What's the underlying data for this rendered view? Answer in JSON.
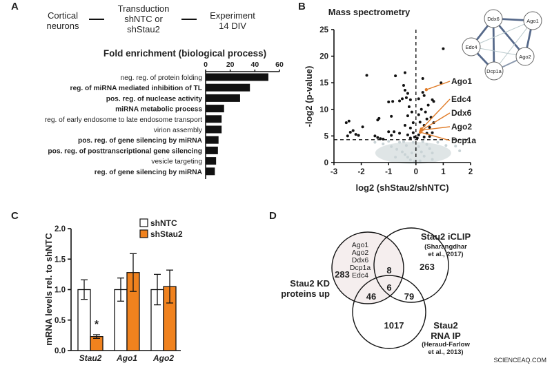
{
  "panels": {
    "a": "A",
    "b": "B",
    "c": "C",
    "d": "D"
  },
  "workflow": {
    "step1": [
      "Cortical",
      "neurons"
    ],
    "step2": [
      "Transduction",
      "shNTC or",
      "shStau2"
    ],
    "step3": [
      "Experiment",
      "14 DIV"
    ]
  },
  "watermark": "SCIENCEAQ.COM",
  "chart_data": [
    {
      "id": "A",
      "type": "bar",
      "orientation": "horizontal",
      "title": "Fold enrichment (biological process)",
      "xlim": [
        0,
        60
      ],
      "xticks": [
        "0",
        "20",
        "40",
        "60"
      ],
      "categories": [
        {
          "label": "neg. reg. of protein folding",
          "bold": false
        },
        {
          "label": "reg. of miRNA mediated inhibition of TL",
          "bold": true
        },
        {
          "label": "pos. reg. of nuclease activity",
          "bold": true
        },
        {
          "label": "miRNA metabolic process",
          "bold": true
        },
        {
          "label": "reg. of early endosome to late endosome transport",
          "bold": false
        },
        {
          "label": "virion assembly",
          "bold": false
        },
        {
          "label": "pos. reg. of gene silencing by miRNA",
          "bold": true
        },
        {
          "label": "pos. reg. of posttranscriptional gene silencing",
          "bold": true
        },
        {
          "label": "vesicle targeting",
          "bold": false
        },
        {
          "label": "reg. of gene silencing by miRNA",
          "bold": true
        }
      ],
      "values": [
        51,
        36,
        28,
        15,
        13,
        13,
        10.5,
        10,
        8.5,
        7.5
      ],
      "bar_color": "#111111"
    },
    {
      "id": "B",
      "type": "scatter",
      "title": "Mass spectrometry",
      "xlabel": "log2 (shStau2/shNTC)",
      "ylabel": "-log2 (p-value)",
      "xlim": [
        -3,
        2
      ],
      "ylim": [
        0,
        25
      ],
      "xticks": [
        "-3",
        "-2",
        "-1",
        "0",
        "1",
        "2"
      ],
      "yticks": [
        "0",
        "5",
        "10",
        "15",
        "20",
        "25"
      ],
      "threshold_y": 4.3,
      "threshold_x": 0,
      "significant_color": "#111111",
      "nonsignificant_color": "#c9d3d6",
      "highlight_color": "#e07b27",
      "significant_points": [
        [
          1.0,
          21.4
        ],
        [
          0.92,
          15
        ],
        [
          0.25,
          15.8
        ],
        [
          -0.4,
          16.9
        ],
        [
          -0.75,
          16.3
        ],
        [
          -1.8,
          16.4
        ],
        [
          -0.45,
          14.5
        ],
        [
          -0.4,
          13.6
        ],
        [
          -0.3,
          13
        ],
        [
          -0.35,
          12.2
        ],
        [
          -0.2,
          11.8
        ],
        [
          -0.5,
          12
        ],
        [
          -0.6,
          11.6
        ],
        [
          -1.0,
          11.4
        ],
        [
          -0.85,
          11.5
        ],
        [
          -0.25,
          10.5
        ],
        [
          -0.15,
          9.5
        ],
        [
          -0.3,
          8.8
        ],
        [
          -0.9,
          8.7
        ],
        [
          -1.35,
          8.3
        ],
        [
          -1.4,
          8
        ],
        [
          -2.45,
          7.8
        ],
        [
          -2.55,
          7.5
        ],
        [
          -1.95,
          6.7
        ],
        [
          -2.3,
          6
        ],
        [
          -2.4,
          5.7
        ],
        [
          -2.2,
          5.3
        ],
        [
          -2.1,
          5.1
        ],
        [
          -2.5,
          5
        ],
        [
          -1.5,
          5
        ],
        [
          -1.4,
          4.7
        ],
        [
          -1.3,
          4.5
        ],
        [
          -1.2,
          4.4
        ],
        [
          -1.0,
          5.8
        ],
        [
          -0.8,
          5.8
        ],
        [
          -0.9,
          5.1
        ],
        [
          -0.6,
          5.5
        ],
        [
          -0.4,
          7
        ],
        [
          -0.2,
          6.5
        ],
        [
          -0.1,
          7.5
        ],
        [
          -0.3,
          5.2
        ],
        [
          -0.1,
          5.6
        ],
        [
          0.1,
          12
        ],
        [
          0.25,
          13.2
        ],
        [
          0.3,
          12.6
        ],
        [
          0.6,
          11.8
        ],
        [
          0.65,
          11.5
        ],
        [
          0.45,
          10.8
        ],
        [
          0.2,
          10
        ],
        [
          0.35,
          9.5
        ],
        [
          0.1,
          9
        ],
        [
          0.4,
          8.2
        ],
        [
          0.55,
          8.5
        ],
        [
          0.15,
          7.6
        ],
        [
          0.3,
          7
        ],
        [
          0.65,
          7.5
        ],
        [
          0.5,
          6.6
        ],
        [
          0.2,
          6.2
        ],
        [
          0.4,
          5.5
        ],
        [
          0.1,
          5.2
        ],
        [
          0.6,
          5.6
        ],
        [
          0.3,
          4.8
        ],
        [
          0.05,
          4.6
        ],
        [
          -0.05,
          4.8
        ],
        [
          0.5,
          4.9
        ],
        [
          -0.2,
          4.6
        ]
      ],
      "nonsignificant_points": [
        [
          -1.5,
          3.8
        ],
        [
          -1.2,
          3.5
        ],
        [
          -0.9,
          3
        ],
        [
          -0.7,
          2.5
        ],
        [
          -0.5,
          2
        ],
        [
          -0.4,
          1.5
        ],
        [
          -0.3,
          1
        ],
        [
          -0.2,
          0.5
        ],
        [
          -0.1,
          3.8
        ],
        [
          0.1,
          3
        ],
        [
          0.2,
          2
        ],
        [
          0.3,
          1.2
        ],
        [
          0.4,
          3.4
        ],
        [
          0.5,
          2.6
        ],
        [
          0.6,
          1.8
        ],
        [
          0.15,
          0.3
        ],
        [
          -0.05,
          0.2
        ],
        [
          -0.6,
          3.8
        ],
        [
          -1.0,
          4
        ],
        [
          0.8,
          3.8
        ],
        [
          1.1,
          3.2
        ],
        [
          1.6,
          2.2
        ],
        [
          1.45,
          3.1
        ],
        [
          0.6,
          0.6
        ],
        [
          -0.75,
          1.0
        ],
        [
          -0.35,
          3.2
        ],
        [
          0.0,
          2.5
        ],
        [
          -0.15,
          1.8
        ],
        [
          0.25,
          3.9
        ],
        [
          -0.45,
          3.9
        ]
      ],
      "labeled_points": [
        {
          "label": "Ago1",
          "x": 0.38,
          "y": 13.7
        },
        {
          "label": "Edc4",
          "x": 0.2,
          "y": 6.3
        },
        {
          "label": "Ddx6",
          "x": 0.18,
          "y": 6.0
        },
        {
          "label": "Ago2",
          "x": 0.22,
          "y": 6.1
        },
        {
          "label": "Dcp1a",
          "x": 0.16,
          "y": 5.7
        }
      ],
      "network": {
        "nodes": [
          "Ddx6",
          "Ago1",
          "Edc4",
          "Ago2",
          "Dcp1a"
        ],
        "edges": [
          [
            "Ddx6",
            "Ago1",
            3
          ],
          [
            "Ddx6",
            "Edc4",
            3
          ],
          [
            "Ddx6",
            "Ago2",
            3
          ],
          [
            "Ddx6",
            "Dcp1a",
            3
          ],
          [
            "Edc4",
            "Dcp1a",
            3
          ],
          [
            "Ago1",
            "Ago2",
            3
          ],
          [
            "Ago1",
            "Edc4",
            1
          ],
          [
            "Ago1",
            "Dcp1a",
            1
          ],
          [
            "Edc4",
            "Ago2",
            1
          ],
          [
            "Ago2",
            "Dcp1a",
            2
          ]
        ]
      }
    },
    {
      "id": "C",
      "type": "bar",
      "ylabel": "mRNA levels rel. to shNTC",
      "ylim": [
        0,
        2.0
      ],
      "yticks": [
        "0.0",
        "0.5",
        "1.0",
        "1.5",
        "2.0"
      ],
      "categories": [
        "Stau2",
        "Ago1",
        "Ago2"
      ],
      "series": [
        {
          "name": "shNTC",
          "color": "#ffffff",
          "values": [
            1.0,
            1.0,
            1.0
          ],
          "errors": [
            0.16,
            0.19,
            0.25
          ]
        },
        {
          "name": "shStau2",
          "color": "#f0821e",
          "values": [
            0.23,
            1.28,
            1.05
          ],
          "errors": [
            0.03,
            0.31,
            0.27
          ]
        }
      ],
      "annotations": [
        {
          "category": "Stau2",
          "series": "shStau2",
          "text": "*"
        }
      ],
      "legend": "top-right"
    },
    {
      "id": "D",
      "type": "venn",
      "sets": [
        {
          "label": [
            "Stau2 KD",
            "proteins up"
          ],
          "only": "283",
          "fill": "#f5eeee"
        },
        {
          "label": [
            "Stau2 iCLIP",
            "(Sharangdhar",
            "et al., 2017)"
          ],
          "only": "263"
        },
        {
          "label": [
            "Stau2",
            "RNA IP",
            "(Heraud-Farlow",
            "et al., 2013)"
          ],
          "only": "1017"
        }
      ],
      "intersections": {
        "kd_iclip": "8",
        "kd_rnaip": "46",
        "iclip_rnaip": "79",
        "all": "6"
      },
      "kd_genes": [
        "Ago1",
        "Ago2",
        "Ddx6",
        "Dcp1a",
        "Edc4"
      ]
    }
  ]
}
